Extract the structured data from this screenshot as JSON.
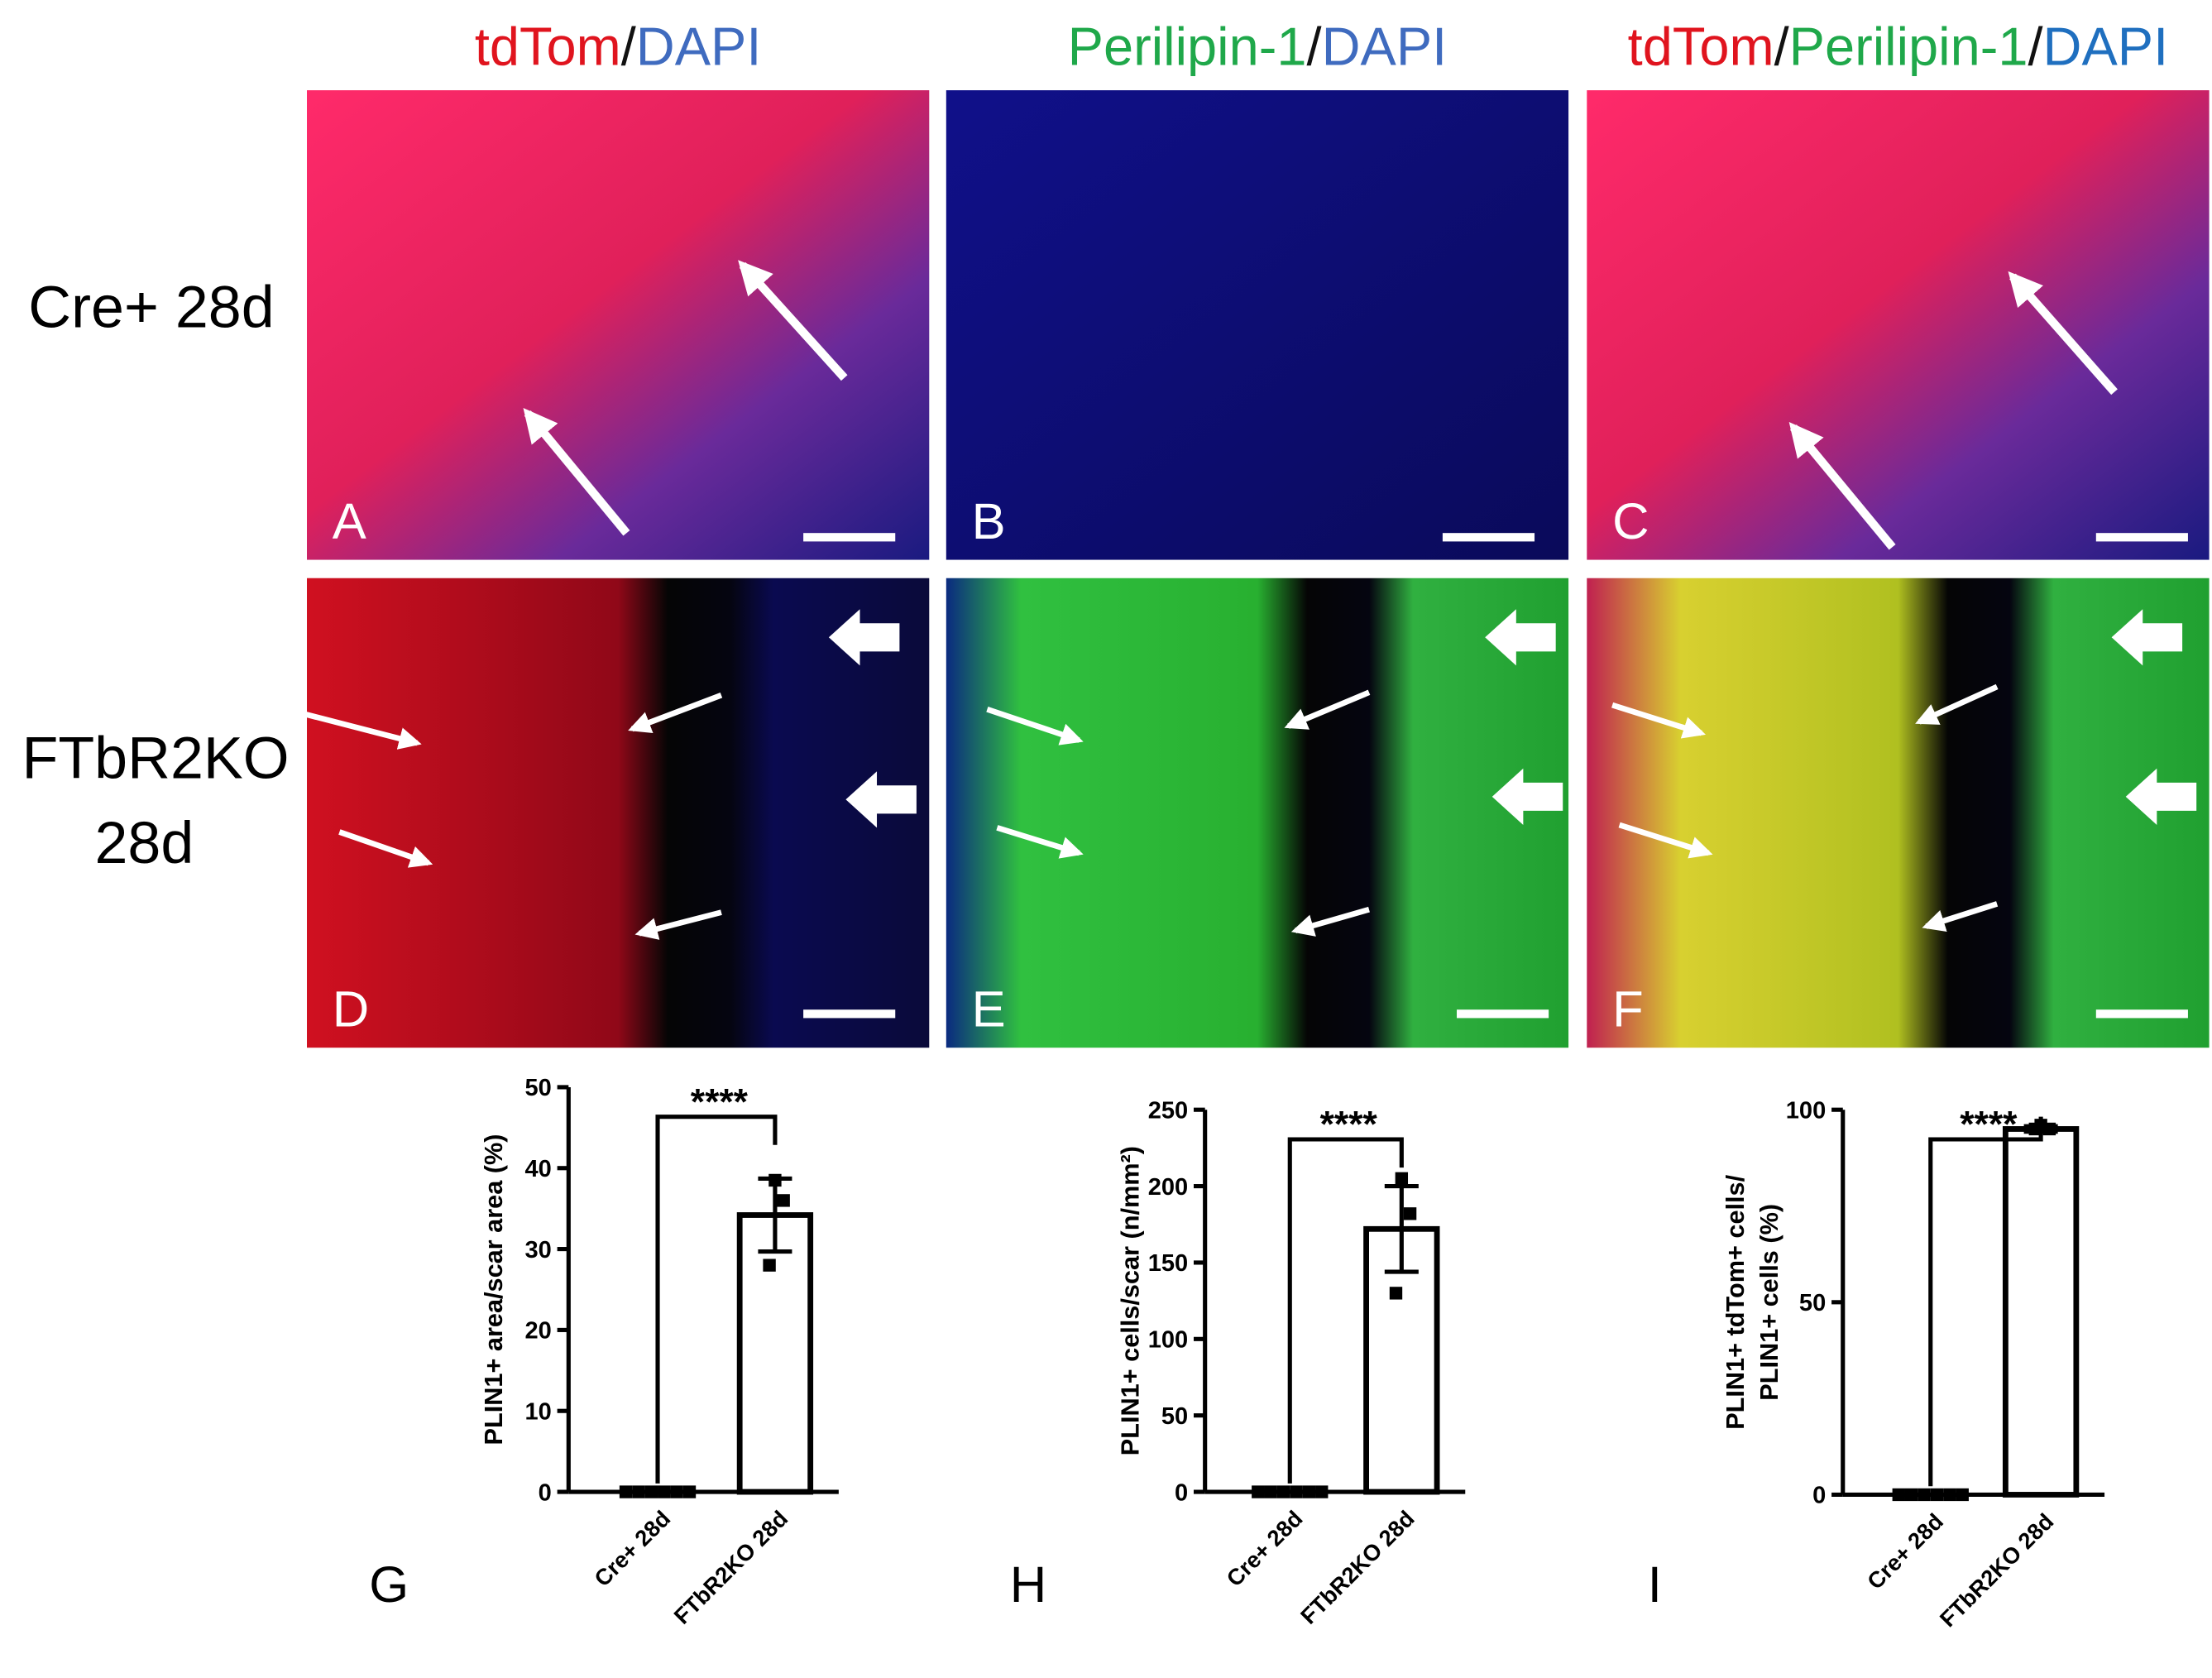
{
  "headers": [
    {
      "parts": [
        {
          "text": "tdTom",
          "color": "#e0141e"
        },
        {
          "text": "/",
          "color": "#111111"
        },
        {
          "text": "DAPI",
          "color": "#3f6bbf"
        }
      ]
    },
    {
      "parts": [
        {
          "text": "Perilipin-1",
          "color": "#1fa84a"
        },
        {
          "text": "/",
          "color": "#111111"
        },
        {
          "text": "DAPI",
          "color": "#3f6bbf"
        }
      ]
    },
    {
      "parts": [
        {
          "text": "tdTom",
          "color": "#e0141e"
        },
        {
          "text": "/",
          "color": "#111111"
        },
        {
          "text": "Perilipin-1",
          "color": "#1fa84a"
        },
        {
          "text": "/",
          "color": "#111111"
        },
        {
          "text": "DAPI",
          "color": "#1f6fbf"
        }
      ]
    }
  ],
  "row_labels": [
    [
      "Cre+ 28d"
    ],
    [
      "FTbR2KO",
      "28d"
    ]
  ],
  "panel_letters": [
    "A",
    "B",
    "C",
    "D",
    "E",
    "F"
  ],
  "chart_data": [
    {
      "type": "bar",
      "panel": "G",
      "ylabel": [
        "PLIN1+ area/scar area (%)"
      ],
      "categories": [
        "Cre+ 28d",
        "FTbR2KO 28d"
      ],
      "values": [
        0,
        34.2
      ],
      "errors": [
        0,
        4.5
      ],
      "points": [
        [
          0,
          0,
          0,
          0,
          0,
          0
        ],
        [
          38.5,
          36,
          28
        ]
      ],
      "ylim": [
        0,
        50
      ],
      "yticks": [
        0,
        10,
        20,
        30,
        40,
        50
      ],
      "significance": "****",
      "color": "#000000"
    },
    {
      "type": "bar",
      "panel": "H",
      "ylabel": [
        "PLIN1+ cells/scar (n/mm²)"
      ],
      "categories": [
        "Cre+ 28d",
        "FTbR2KO 28d"
      ],
      "values": [
        0,
        172
      ],
      "errors": [
        0,
        28
      ],
      "points": [
        [
          0,
          0,
          0,
          0,
          0,
          0
        ],
        [
          205,
          182,
          130
        ]
      ],
      "ylim": [
        0,
        250
      ],
      "yticks": [
        0,
        50,
        100,
        150,
        200,
        250
      ],
      "significance": "****",
      "color": "#000000"
    },
    {
      "type": "bar",
      "panel": "I",
      "ylabel": [
        "PLIN1+ tdTom+ cells/",
        "PLIN1+ cells (%)"
      ],
      "categories": [
        "Cre+ 28d",
        "FTbR2KO 28d"
      ],
      "values": [
        0,
        95
      ],
      "errors": [
        0,
        0.7
      ],
      "points": [
        [
          0,
          0,
          0,
          0,
          0,
          0
        ],
        [
          96,
          95,
          95
        ]
      ],
      "ylim": [
        0,
        100
      ],
      "yticks": [
        0,
        50,
        100
      ],
      "significance": "****",
      "color": "#000000"
    }
  ]
}
